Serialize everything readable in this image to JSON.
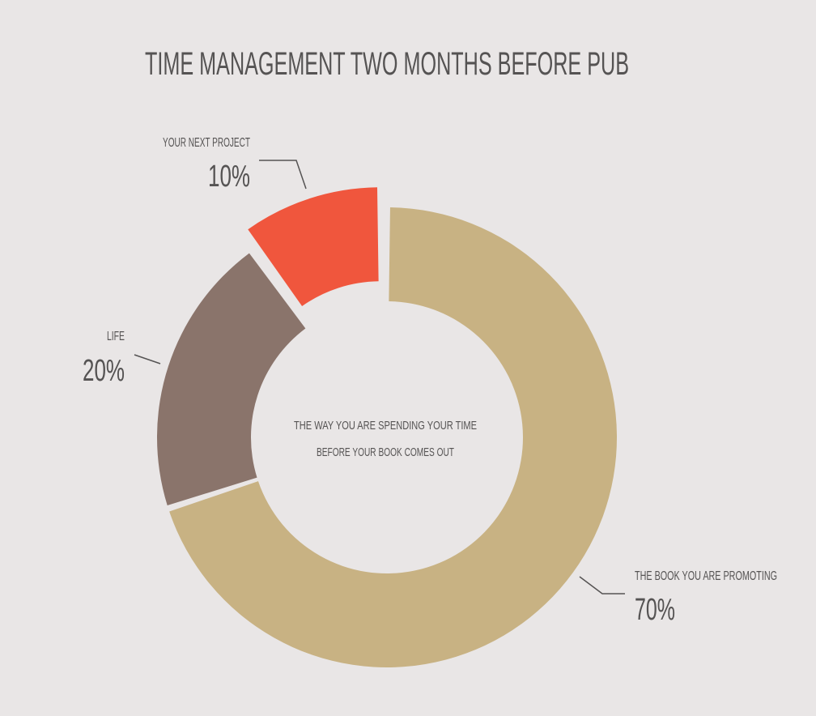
{
  "chart_data": {
    "type": "pie",
    "title": "TIME MANAGEMENT TWO MONTHS BEFORE PUB",
    "center_text": [
      "THE WAY YOU ARE SPENDING YOUR TIME",
      "BEFORE YOUR BOOK COMES OUT"
    ],
    "slices": [
      {
        "label": "THE BOOK YOU ARE PROMOTING",
        "value": 70,
        "value_label": "70%",
        "color": "#c8b283",
        "exploded": false
      },
      {
        "label": "LIFE",
        "value": 20,
        "value_label": "20%",
        "color": "#8a746b",
        "exploded": false
      },
      {
        "label": "YOUR NEXT PROJECT",
        "value": 10,
        "value_label": "10%",
        "color": "#f0563d",
        "exploded": true
      }
    ],
    "donut": true,
    "legend": "none"
  },
  "colors": {
    "background": "#e9e6e6",
    "text": "#555353",
    "leader": "#555353"
  }
}
